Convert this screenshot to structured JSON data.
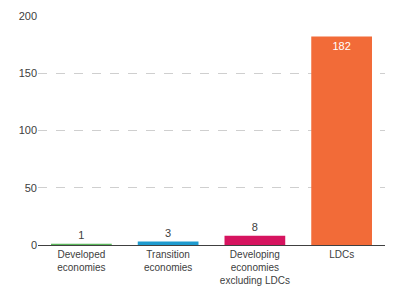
{
  "chart_data": {
    "type": "bar",
    "categories": [
      "Developed economies",
      "Transition economies",
      "Developing economies excluding LDCs",
      "LDCs"
    ],
    "values": [
      1,
      3,
      8,
      182
    ],
    "colors": [
      "#5cb85c",
      "#1f9bcf",
      "#d6145f",
      "#f26b38"
    ],
    "ylim": [
      0,
      200
    ],
    "yticks": [
      0,
      50,
      100,
      150,
      200
    ],
    "grid": true,
    "data_labels": true
  }
}
